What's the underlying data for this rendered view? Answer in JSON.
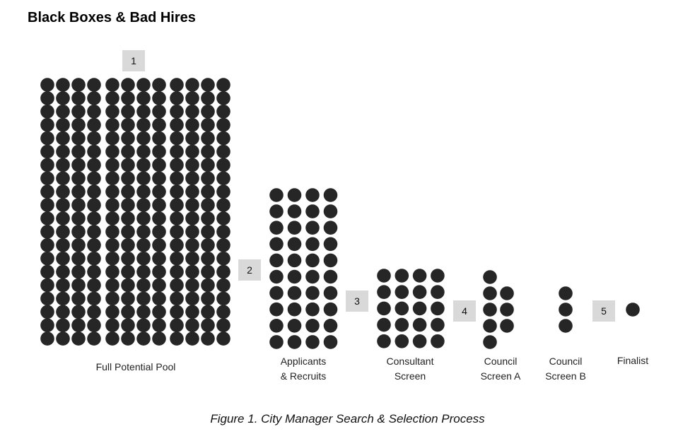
{
  "title": "Black Boxes & Bad Hires",
  "caption": "Figure 1. City Manager Search & Selection Process",
  "dot_color": "#262626",
  "steps": [
    "1",
    "2",
    "3",
    "4",
    "5"
  ],
  "stages": [
    {
      "label": "Full Potential Pool",
      "columns": 12,
      "rows": 20
    },
    {
      "label_line1": "Applicants",
      "label_line2": "& Recruits",
      "columns": 4,
      "rows": 10
    },
    {
      "label_line1": "Consultant",
      "label_line2": "Screen",
      "columns": 4,
      "rows": 5
    },
    {
      "label_line1": "Council",
      "label_line2": "Screen A",
      "column_counts": [
        5,
        3
      ]
    },
    {
      "label_line1": "Council",
      "label_line2": "Screen B",
      "column_counts": [
        3
      ]
    },
    {
      "label": "Finalist",
      "column_counts": [
        1
      ]
    }
  ]
}
